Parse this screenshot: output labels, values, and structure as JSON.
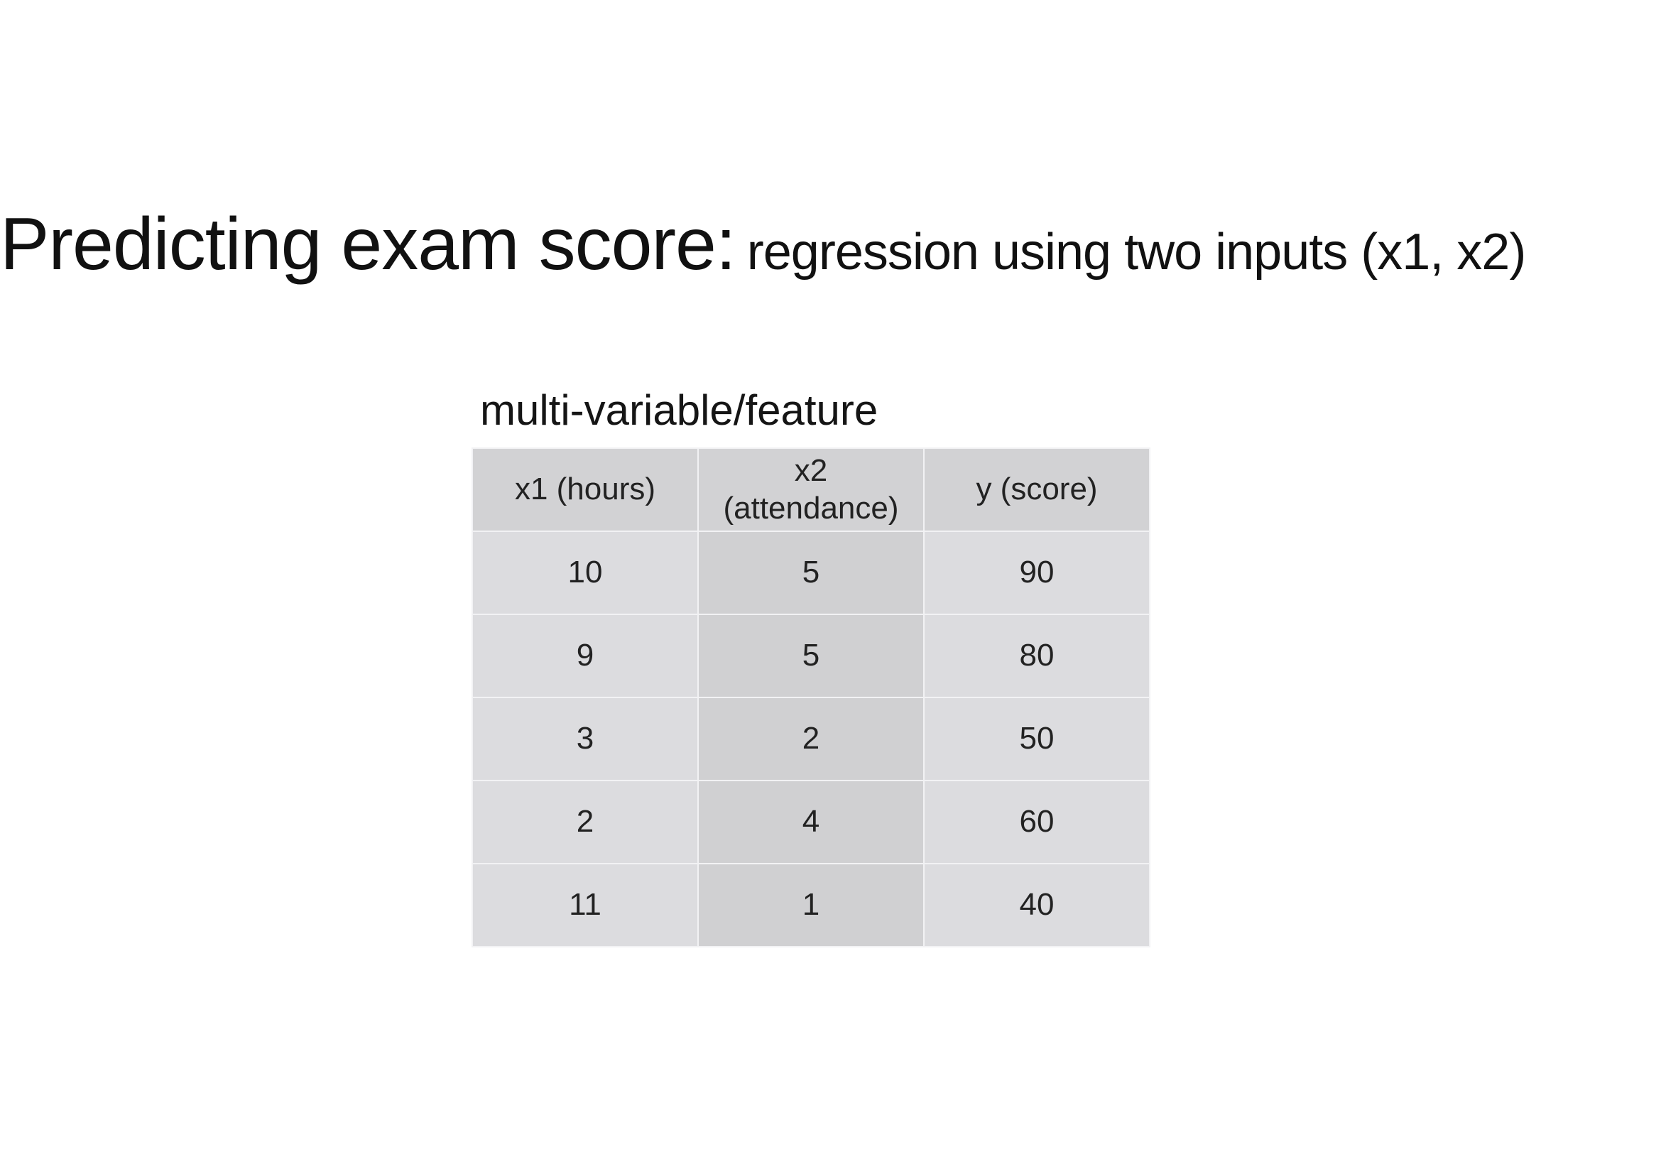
{
  "title": {
    "main": "Predicting exam score:",
    "sub": "regression using two inputs (x1, x2)"
  },
  "table": {
    "caption": "multi-variable/feature",
    "headers": [
      "x1 (hours)",
      "x2\n(attendance)",
      "y (score)"
    ],
    "rows": [
      [
        "10",
        "5",
        "90"
      ],
      [
        "9",
        "5",
        "80"
      ],
      [
        "3",
        "2",
        "50"
      ],
      [
        "2",
        "4",
        "60"
      ],
      [
        "11",
        "1",
        "40"
      ]
    ]
  }
}
